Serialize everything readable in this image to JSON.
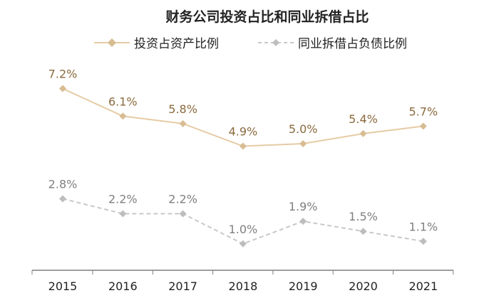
{
  "chart_data": {
    "type": "line",
    "title": "财务公司投资占比和同业拆借占比",
    "categories": [
      "2015",
      "2016",
      "2017",
      "2018",
      "2019",
      "2020",
      "2021"
    ],
    "series": [
      {
        "name": "投资占资产比例",
        "values": [
          7.2,
          6.1,
          5.8,
          4.9,
          5.0,
          5.4,
          5.7
        ],
        "labels": [
          "7.2%",
          "6.1%",
          "5.8%",
          "4.9%",
          "5.0%",
          "5.4%",
          "5.7%"
        ],
        "color": "#E6CBA5",
        "marker_color": "#D8BC92",
        "label_color": "#8A6A3E",
        "dash": false
      },
      {
        "name": "同业拆借占负债比例",
        "values": [
          2.8,
          2.2,
          2.2,
          1.0,
          1.9,
          1.5,
          1.1
        ],
        "labels": [
          "2.8%",
          "2.2%",
          "2.2%",
          "1.0%",
          "1.9%",
          "1.5%",
          "1.1%"
        ],
        "color": "#C8C8C8",
        "marker_color": "#BDBDBD",
        "label_color": "#7F7F7F",
        "dash": true
      }
    ],
    "ylim": [
      0,
      8
    ],
    "grid": false,
    "legend": "top"
  }
}
